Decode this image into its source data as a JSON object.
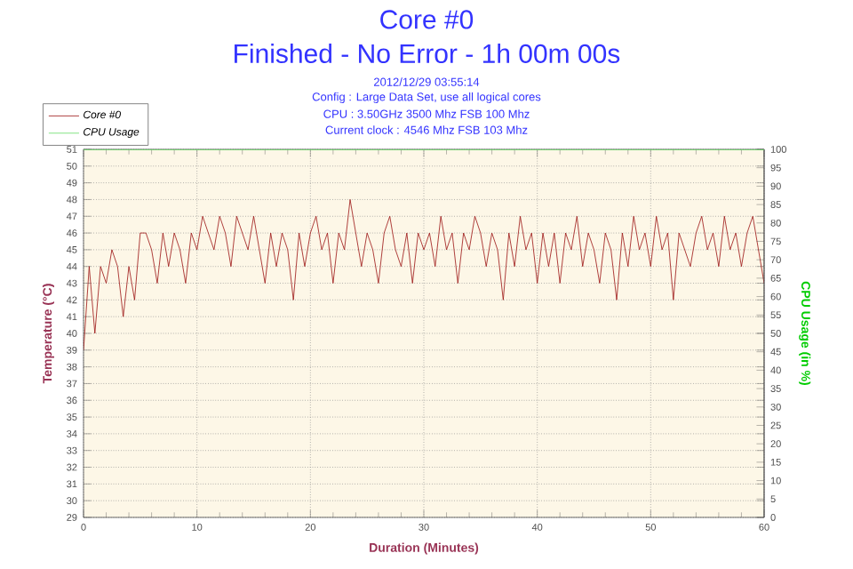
{
  "chart_data": {
    "type": "line",
    "title": "Core #0",
    "subtitle": "Finished - No Error - 1h 00m 00s",
    "annotations": [
      "2012/12/29 03:55:14",
      "Config : Large Data Set, use all logical cores",
      "CPU : 3.50GHz 3500 Mhz FSB 100 Mhz",
      "Current clock : 4546 Mhz FSB 103 Mhz"
    ],
    "xlabel": "Duration (Minutes)",
    "ylabel": "Temperature (°C)",
    "y2label": "CPU Usage (in %)",
    "xlim": [
      0,
      60
    ],
    "xticks": [
      0,
      10,
      20,
      30,
      40,
      50,
      60
    ],
    "ylim": [
      29,
      51
    ],
    "yticks": [
      29,
      30,
      31,
      32,
      33,
      34,
      35,
      36,
      37,
      38,
      39,
      40,
      41,
      42,
      43,
      44,
      45,
      46,
      47,
      48,
      49,
      50,
      51
    ],
    "y2lim": [
      0,
      100
    ],
    "y2ticks": [
      0,
      5,
      10,
      15,
      20,
      25,
      30,
      35,
      40,
      45,
      50,
      55,
      60,
      65,
      70,
      75,
      80,
      85,
      90,
      95,
      100
    ],
    "grid": true,
    "legend": "top left",
    "series": [
      {
        "name": "Core #0",
        "color": "#9b1111",
        "x": [
          0,
          0.5,
          1,
          1.5,
          2,
          2.5,
          3,
          3.5,
          4,
          4.5,
          5,
          5.5,
          6,
          6.5,
          7,
          7.5,
          8,
          8.5,
          9,
          9.5,
          10,
          10.5,
          11,
          11.5,
          12,
          12.5,
          13,
          13.5,
          14,
          14.5,
          15,
          15.5,
          16,
          16.5,
          17,
          17.5,
          18,
          18.5,
          19,
          19.5,
          20,
          20.5,
          21,
          21.5,
          22,
          22.5,
          23,
          23.5,
          24,
          24.5,
          25,
          25.5,
          26,
          26.5,
          27,
          27.5,
          28,
          28.5,
          29,
          29.5,
          30,
          30.5,
          31,
          31.5,
          32,
          32.5,
          33,
          33.5,
          34,
          34.5,
          35,
          35.5,
          36,
          36.5,
          37,
          37.5,
          38,
          38.5,
          39,
          39.5,
          40,
          40.5,
          41,
          41.5,
          42,
          42.5,
          43,
          43.5,
          44,
          44.5,
          45,
          45.5,
          46,
          46.5,
          47,
          47.5,
          48,
          48.5,
          49,
          49.5,
          50,
          50.5,
          51,
          51.5,
          52,
          52.5,
          53,
          53.5,
          54,
          54.5,
          55,
          55.5,
          56,
          56.5,
          57,
          57.5,
          58,
          58.5,
          59,
          59.5,
          60
        ],
        "values": [
          39,
          44,
          40,
          44,
          43,
          45,
          44,
          41,
          44,
          42,
          46,
          46,
          45,
          43,
          46,
          44,
          46,
          45,
          43,
          46,
          45,
          47,
          46,
          45,
          47,
          46,
          44,
          47,
          46,
          45,
          47,
          45,
          43,
          46,
          44,
          46,
          45,
          42,
          46,
          44,
          46,
          47,
          45,
          46,
          43,
          46,
          45,
          48,
          46,
          44,
          46,
          45,
          43,
          46,
          47,
          45,
          44,
          46,
          43,
          46,
          45,
          46,
          44,
          47,
          45,
          46,
          43,
          46,
          45,
          47,
          46,
          44,
          46,
          45,
          42,
          46,
          44,
          47,
          45,
          46,
          43,
          46,
          44,
          46,
          43,
          46,
          45,
          47,
          44,
          46,
          45,
          43,
          46,
          45,
          42,
          46,
          44,
          47,
          45,
          46,
          44,
          47,
          45,
          46,
          42,
          46,
          45,
          44,
          46,
          47,
          45,
          46,
          44,
          47,
          45,
          46,
          44,
          46,
          47,
          45,
          43
        ]
      },
      {
        "name": "CPU Usage",
        "color": "#66dd66",
        "axis": "y2",
        "x": [
          0,
          60
        ],
        "values": [
          100,
          100
        ]
      }
    ]
  }
}
